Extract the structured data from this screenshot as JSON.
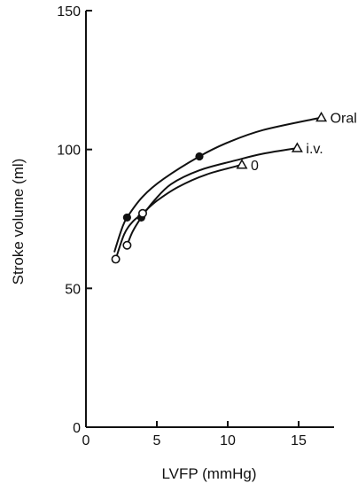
{
  "chart_data": {
    "type": "line",
    "xlabel": "LVFP (mmHg)",
    "ylabel": "Stroke volume (ml)",
    "xlim": [
      0,
      17.5
    ],
    "ylim": [
      0,
      150
    ],
    "x_ticks": [
      0,
      5,
      10,
      15
    ],
    "y_ticks": [
      0,
      50,
      100,
      150
    ],
    "grid": false,
    "series": [
      {
        "name": "Oral",
        "marker_start": "filled-circle",
        "marker_mid": "filled-circle",
        "marker_end": "open-triangle",
        "points": [
          [
            2.9,
            75.5
          ],
          [
            8.0,
            97.5
          ],
          [
            16.6,
            111.5
          ]
        ],
        "curve": [
          [
            2.0,
            63
          ],
          [
            2.5,
            71
          ],
          [
            2.9,
            75.5
          ],
          [
            4.0,
            83
          ],
          [
            5.5,
            89.5
          ],
          [
            8.0,
            97.5
          ],
          [
            10.0,
            102.5
          ],
          [
            12.5,
            107
          ],
          [
            16.6,
            111.5
          ]
        ]
      },
      {
        "name": "i.v.",
        "marker_start": "open-circle",
        "marker_mid": "filled-circle",
        "marker_end": "open-triangle",
        "points": [
          [
            2.9,
            65.5
          ],
          [
            3.9,
            75.5
          ],
          [
            14.9,
            100.5
          ]
        ],
        "curve": [
          [
            2.9,
            65.5
          ],
          [
            3.3,
            70.5
          ],
          [
            3.9,
            75.5
          ],
          [
            4.8,
            81.5
          ],
          [
            6.0,
            87.5
          ],
          [
            8.0,
            92.5
          ],
          [
            10.5,
            96
          ],
          [
            12.5,
            98.5
          ],
          [
            14.9,
            100.5
          ]
        ]
      },
      {
        "name": "0",
        "marker_start": "open-circle",
        "marker_mid": "open-circle",
        "marker_end": "open-triangle",
        "points": [
          [
            2.1,
            60.5
          ],
          [
            4.0,
            77.0
          ],
          [
            11.0,
            94.5
          ]
        ],
        "curve": [
          [
            2.1,
            60.5
          ],
          [
            2.7,
            69.5
          ],
          [
            3.3,
            74
          ],
          [
            4.0,
            77
          ],
          [
            5.0,
            81.5
          ],
          [
            6.5,
            86.5
          ],
          [
            8.5,
            91
          ],
          [
            11.0,
            94.5
          ]
        ]
      }
    ]
  },
  "colors": {
    "ink": "#111111",
    "background": "#ffffff"
  }
}
